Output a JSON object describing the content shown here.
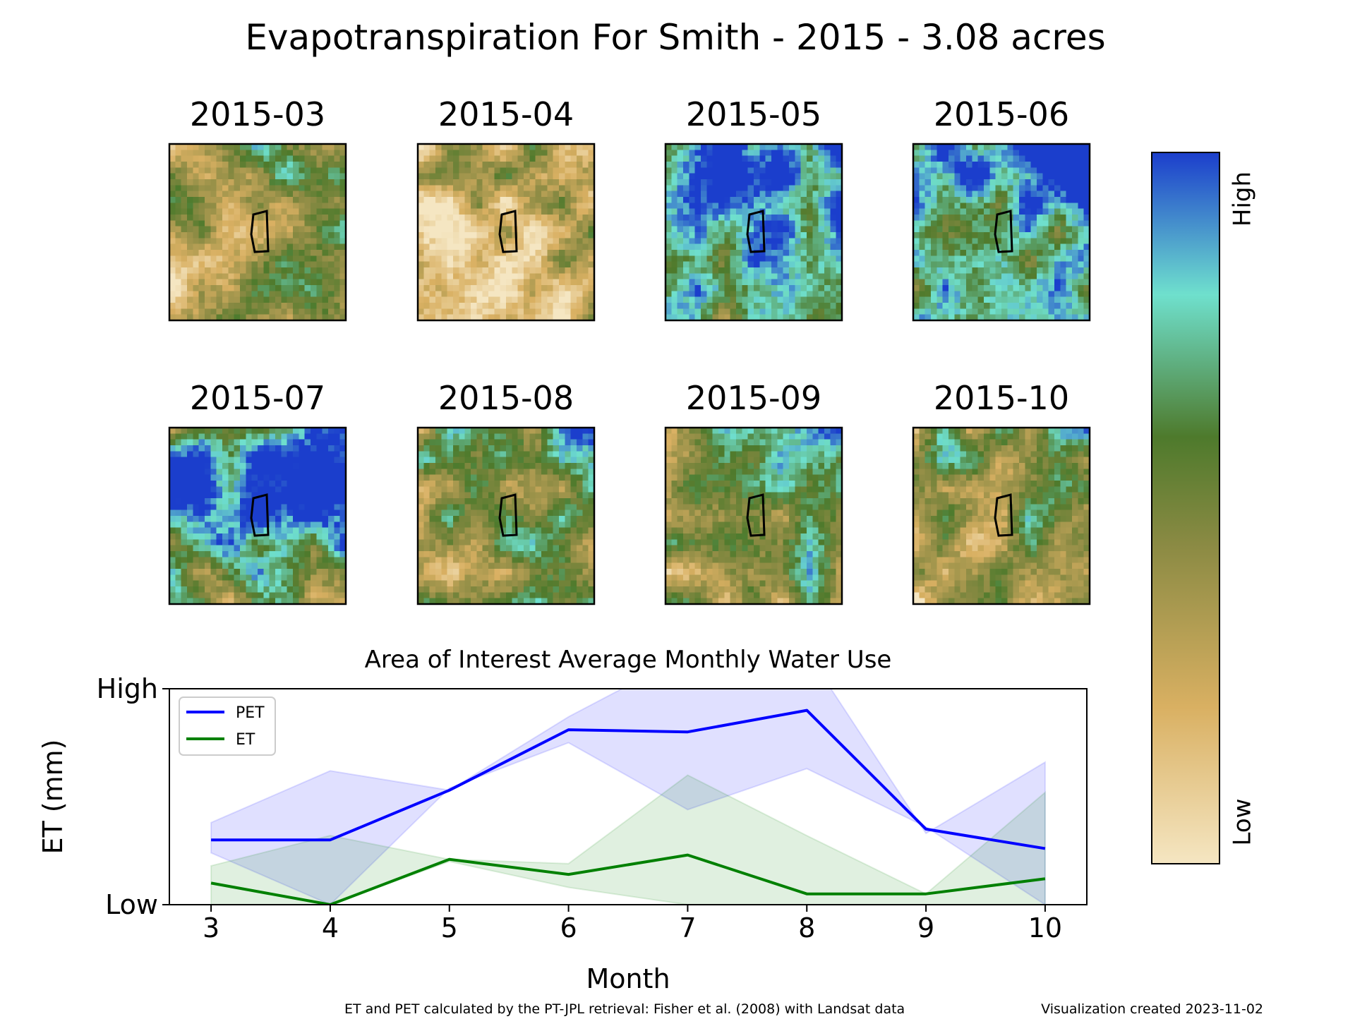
{
  "title": "Evapotranspiration For Smith - 2015 - 3.08 acres",
  "maps": {
    "panels": [
      {
        "label": "2015-03",
        "wetness": 0.42,
        "hot_spot": "top-right"
      },
      {
        "label": "2015-04",
        "wetness": 0.22,
        "hot_spot": "top-right"
      },
      {
        "label": "2015-05",
        "wetness": 0.82,
        "hot_spot": "upper"
      },
      {
        "label": "2015-06",
        "wetness": 0.78,
        "hot_spot": "upper"
      },
      {
        "label": "2015-07",
        "wetness": 0.72,
        "hot_spot": "middle-band"
      },
      {
        "label": "2015-08",
        "wetness": 0.52,
        "hot_spot": "top-right"
      },
      {
        "label": "2015-09",
        "wetness": 0.55,
        "hot_spot": "top-right"
      },
      {
        "label": "2015-10",
        "wetness": 0.5,
        "hot_spot": "top-right"
      }
    ]
  },
  "colorbar": {
    "high_label": "High",
    "low_label": "Low",
    "colors": [
      "#f5e6c2",
      "#d9b062",
      "#8a8a43",
      "#4e7a2c",
      "#6fe0cd",
      "#1b3ecc"
    ]
  },
  "chart_data": {
    "type": "line",
    "title": "Area of Interest Average Monthly Water Use",
    "xlabel": "Month",
    "ylabel": "ET (mm)",
    "x": [
      3,
      4,
      5,
      6,
      7,
      8,
      9,
      10
    ],
    "xlim": [
      2.65,
      10.35
    ],
    "ylim": [
      0,
      1
    ],
    "ytick_labels": [
      {
        "value": 0,
        "label": "Low"
      },
      {
        "value": 1,
        "label": "High"
      }
    ],
    "series": [
      {
        "name": "PET",
        "color": "#0000ff",
        "values": [
          0.3,
          0.3,
          0.53,
          0.81,
          0.8,
          0.9,
          0.35,
          0.26
        ],
        "band_low": [
          0.24,
          0.0,
          0.54,
          0.75,
          0.44,
          0.63,
          0.36,
          0.0
        ],
        "band_high": [
          0.38,
          0.62,
          0.53,
          0.87,
          1.16,
          1.17,
          0.33,
          0.66
        ]
      },
      {
        "name": "ET",
        "color": "#008000",
        "values": [
          0.1,
          0.0,
          0.21,
          0.14,
          0.23,
          0.05,
          0.05,
          0.12
        ],
        "band_low": [
          0.0,
          0.0,
          0.2,
          0.08,
          0.0,
          0.0,
          0.0,
          0.0
        ],
        "band_high": [
          0.18,
          0.32,
          0.21,
          0.19,
          0.6,
          0.32,
          0.05,
          0.52
        ]
      }
    ],
    "legend_position": "top-left",
    "grid": false
  },
  "footer": {
    "source": "ET and PET calculated by the PT-JPL retrieval: Fisher et al. (2008) with Landsat data",
    "created": "Visualization created 2023-11-02"
  }
}
